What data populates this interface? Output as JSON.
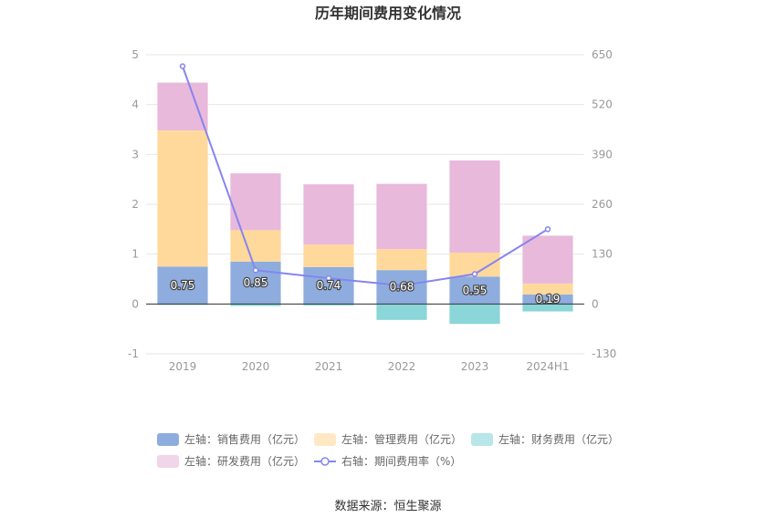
{
  "chart_data": {
    "type": "bar",
    "stacked": true,
    "title": "历年期间费用变化情况",
    "categories": [
      "2019",
      "2020",
      "2021",
      "2022",
      "2023",
      "2024H1"
    ],
    "series": [
      {
        "name": "左轴：销售费用（亿元）",
        "axis": "left",
        "type": "bar",
        "color": "#8eadde",
        "values": [
          0.75,
          0.85,
          0.74,
          0.68,
          0.55,
          0.19
        ],
        "labels": [
          "0.75",
          "0.85",
          "0.74",
          "0.68",
          "0.55",
          "0.19"
        ]
      },
      {
        "name": "左轴：管理费用（亿元）",
        "axis": "left",
        "type": "bar",
        "color": "#ffd99b",
        "values": [
          2.73,
          0.63,
          0.45,
          0.42,
          0.48,
          0.22
        ]
      },
      {
        "name": "左轴：财务费用（亿元）",
        "axis": "left",
        "type": "bar",
        "color": "#8ad6d8",
        "values": [
          -0.02,
          -0.04,
          -0.03,
          -0.32,
          -0.4,
          -0.15
        ]
      },
      {
        "name": "左轴：研发费用（亿元）",
        "axis": "left",
        "type": "bar",
        "color": "#e8b9da",
        "values": [
          0.96,
          1.14,
          1.21,
          1.31,
          1.85,
          0.96
        ]
      },
      {
        "name": "右轴：期间费用率（%）",
        "axis": "right",
        "type": "line",
        "color": "#8585f0",
        "values": [
          620,
          88,
          67,
          48,
          78,
          195
        ]
      }
    ],
    "y_left": {
      "min": -1,
      "max": 5,
      "ticks": [
        "-1",
        "0",
        "1",
        "2",
        "3",
        "4",
        "5"
      ]
    },
    "y_right": {
      "min": -130,
      "max": 650,
      "ticks": [
        "-130",
        "0",
        "130",
        "260",
        "390",
        "520",
        "650"
      ]
    },
    "grid": true,
    "legend_position": "bottom"
  },
  "source": "数据来源：恒生聚源"
}
